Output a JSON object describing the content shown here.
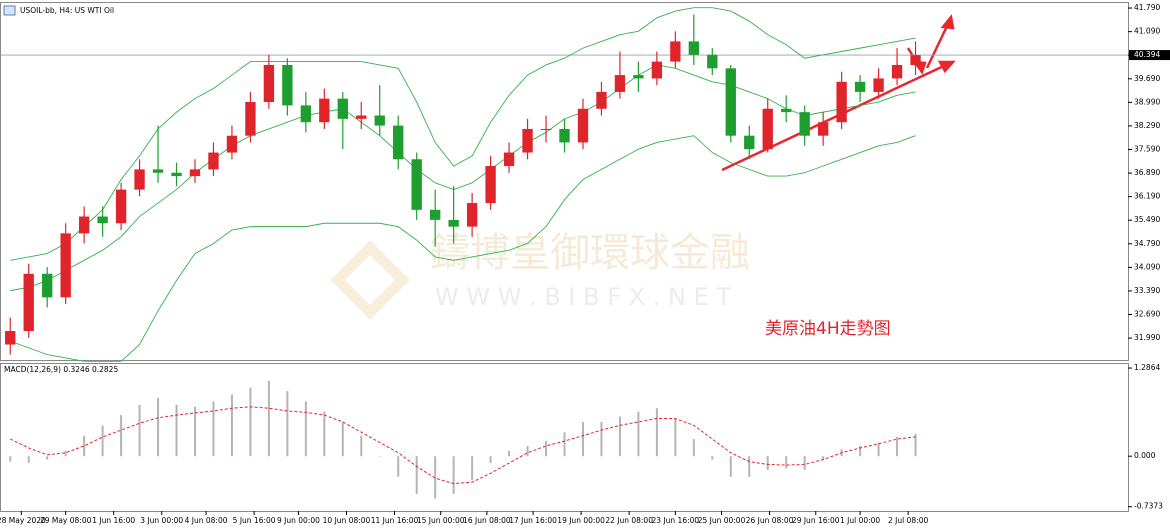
{
  "chart_data": [
    {
      "type": "candlestick",
      "title": "USOIL-bb, H4:  US WTI Oil",
      "annotation": "美原油4H走勢图",
      "watermark": [
        "鑄博皇御環球金融",
        "W W W . B I B F X . N E T"
      ],
      "up_color": "#e0242c",
      "down_color": "#1e9e2e",
      "band_color": "#33b24a",
      "xlim": [
        0,
        61
      ],
      "ylim": [
        31.34,
        41.94
      ],
      "xticks": [
        {
          "value": 1.1,
          "label": "28 May 2020"
        },
        {
          "value": 3.5,
          "label": "29 May 08:00"
        },
        {
          "value": 6.1,
          "label": "1 Jun 16:00"
        },
        {
          "value": 8.7,
          "label": "3 Jun 00:00"
        },
        {
          "value": 11.1,
          "label": "4 Jun 08:00"
        },
        {
          "value": 13.7,
          "label": "5 Jun 16:00"
        },
        {
          "value": 16.1,
          "label": "9 Jun 00:00"
        },
        {
          "value": 18.7,
          "label": "10 Jun 08:00"
        },
        {
          "value": 21.3,
          "label": "11 Jun 16:00"
        },
        {
          "value": 23.8,
          "label": "15 Jun 00:00"
        },
        {
          "value": 26.3,
          "label": "16 Jun 08:00"
        },
        {
          "value": 28.8,
          "label": "17 Jun 16:00"
        },
        {
          "value": 31.4,
          "label": "19 Jun 00:00"
        },
        {
          "value": 34,
          "label": "22 Jun 08:00"
        },
        {
          "value": 36.5,
          "label": "23 Jun 16:00"
        },
        {
          "value": 39,
          "label": "25 Jun 00:00"
        },
        {
          "value": 41.6,
          "label": "26 Jun 08:00"
        },
        {
          "value": 44.1,
          "label": "29 Jun 16:00"
        },
        {
          "value": 46.5,
          "label": "1 Jul 00:00"
        },
        {
          "value": 49.1,
          "label": "2 Jul 08:00"
        }
      ],
      "yticks": [
        {
          "value": 41.79,
          "label": "41.790"
        },
        {
          "value": 41.09,
          "label": "41.090"
        },
        {
          "value": 40.39,
          "label": "40.390"
        },
        {
          "value": 39.69,
          "label": "39.690"
        },
        {
          "value": 38.99,
          "label": "38.990"
        },
        {
          "value": 38.29,
          "label": "38.290"
        },
        {
          "value": 37.59,
          "label": "37.590"
        },
        {
          "value": 36.89,
          "label": "36.890"
        },
        {
          "value": 36.19,
          "label": "36.190"
        },
        {
          "value": 35.49,
          "label": "35.490"
        },
        {
          "value": 34.79,
          "label": "34.790"
        },
        {
          "value": 34.09,
          "label": "34.090"
        },
        {
          "value": 33.39,
          "label": "33.390"
        },
        {
          "value": 32.69,
          "label": "32.690"
        },
        {
          "value": 31.99,
          "label": "31.990"
        }
      ],
      "price_line": 40.394,
      "open": [
        31.8,
        32.2,
        33.9,
        33.2,
        35.1,
        35.6,
        35.4,
        36.4,
        37.0,
        36.9,
        36.8,
        37.0,
        37.5,
        38.0,
        39.0,
        40.1,
        38.9,
        38.4,
        39.1,
        38.5,
        38.6,
        38.3,
        37.3,
        35.8,
        35.5,
        35.3,
        36.0,
        37.1,
        37.5,
        38.2,
        38.2,
        37.8,
        38.8,
        39.3,
        39.8,
        39.7,
        40.2,
        40.8,
        40.4,
        40.0,
        38.0,
        37.6,
        38.8,
        38.7,
        38.0,
        38.4,
        39.6,
        39.3,
        39.7,
        40.1
      ],
      "high": [
        32.6,
        34.2,
        34.1,
        35.4,
        35.9,
        35.9,
        36.6,
        37.3,
        38.3,
        37.2,
        37.3,
        37.8,
        38.3,
        39.3,
        40.4,
        40.3,
        39.3,
        39.4,
        39.3,
        39.0,
        39.5,
        38.6,
        37.5,
        36.4,
        36.5,
        36.3,
        37.4,
        37.8,
        38.5,
        38.6,
        38.5,
        39.1,
        39.6,
        40.5,
        40.2,
        40.5,
        41.1,
        41.6,
        40.6,
        40.1,
        38.3,
        39.1,
        39.2,
        38.9,
        38.7,
        39.9,
        39.8,
        40.0,
        40.6,
        40.8
      ],
      "low": [
        31.5,
        32.0,
        32.9,
        33.0,
        34.8,
        35.0,
        35.2,
        36.2,
        36.6,
        36.5,
        36.6,
        36.8,
        37.3,
        37.8,
        38.8,
        38.6,
        38.1,
        38.2,
        37.6,
        38.2,
        38.0,
        37.0,
        35.5,
        34.7,
        34.8,
        35.0,
        35.8,
        36.9,
        37.3,
        37.8,
        37.5,
        37.6,
        38.6,
        39.1,
        39.3,
        39.5,
        40.0,
        40.1,
        39.8,
        37.8,
        37.3,
        37.5,
        38.4,
        37.7,
        37.7,
        38.2,
        39.0,
        39.1,
        39.5,
        39.8
      ],
      "close": [
        32.2,
        33.9,
        33.2,
        35.1,
        35.6,
        35.4,
        36.4,
        37.0,
        36.9,
        36.8,
        37.0,
        37.5,
        38.0,
        39.0,
        40.1,
        38.9,
        38.4,
        39.1,
        38.5,
        38.6,
        38.3,
        37.3,
        35.8,
        35.5,
        35.3,
        36.0,
        37.1,
        37.5,
        38.2,
        38.2,
        37.8,
        38.8,
        39.3,
        39.8,
        39.7,
        40.2,
        40.8,
        40.4,
        40.0,
        38.0,
        37.6,
        38.8,
        38.7,
        38.0,
        38.4,
        39.6,
        39.3,
        39.7,
        40.1,
        40.39
      ],
      "upper": [
        34.3,
        34.4,
        34.5,
        34.8,
        35.3,
        35.8,
        36.7,
        37.4,
        38.2,
        38.7,
        39.1,
        39.4,
        39.8,
        40.2,
        40.2,
        40.2,
        40.2,
        40.2,
        40.2,
        40.2,
        40.1,
        40.0,
        39.0,
        37.8,
        37.1,
        37.4,
        38.4,
        39.2,
        39.8,
        40.1,
        40.3,
        40.6,
        40.8,
        41.0,
        41.1,
        41.5,
        41.7,
        41.8,
        41.8,
        41.7,
        41.4,
        41.0,
        40.7,
        40.3,
        40.4,
        40.5,
        40.6,
        40.7,
        40.8,
        40.9
      ],
      "middle": [
        33.4,
        33.5,
        33.7,
        34.0,
        34.3,
        34.6,
        35.0,
        35.6,
        36.0,
        36.4,
        36.9,
        37.3,
        37.7,
        38.0,
        38.2,
        38.4,
        38.6,
        38.7,
        38.8,
        38.4,
        38.0,
        37.5,
        37.0,
        36.6,
        36.4,
        36.6,
        37.0,
        37.4,
        37.8,
        38.1,
        38.5,
        38.7,
        39.0,
        39.4,
        39.8,
        40.1,
        40.0,
        39.8,
        39.6,
        39.5,
        39.3,
        39.1,
        38.8,
        38.6,
        38.7,
        38.8,
        38.9,
        39.0,
        39.2,
        39.3
      ],
      "lower": [
        31.9,
        31.7,
        31.5,
        31.4,
        31.3,
        31.3,
        31.3,
        31.8,
        32.8,
        33.7,
        34.5,
        34.8,
        35.2,
        35.3,
        35.3,
        35.3,
        35.3,
        35.4,
        35.4,
        35.4,
        35.4,
        35.3,
        34.9,
        34.4,
        34.3,
        34.4,
        34.5,
        34.6,
        34.8,
        35.3,
        36.1,
        36.7,
        37.0,
        37.3,
        37.6,
        37.8,
        37.9,
        38.0,
        37.5,
        37.2,
        37.0,
        36.8,
        36.8,
        36.9,
        37.1,
        37.3,
        37.5,
        37.7,
        37.8,
        38.0
      ]
    },
    {
      "type": "macd",
      "title": "MACD(12,26,9) 0.3246 0.2825",
      "hist_color": "#b4b4b4",
      "signal_color": "#e0242c",
      "ylim": [
        -0.8,
        1.36
      ],
      "yticks": [
        1.2864,
        {
          "value": 0,
          "label": "0.000"
        },
        -0.7373
      ],
      "histogram": [
        -0.08,
        -0.1,
        -0.05,
        0.08,
        0.3,
        0.45,
        0.6,
        0.75,
        0.85,
        0.75,
        0.72,
        0.8,
        0.9,
        1.0,
        1.1,
        0.95,
        0.8,
        0.65,
        0.5,
        0.3,
        0.0,
        -0.3,
        -0.55,
        -0.62,
        -0.55,
        -0.35,
        -0.1,
        0.08,
        0.15,
        0.22,
        0.35,
        0.5,
        0.5,
        0.58,
        0.65,
        0.7,
        0.55,
        0.25,
        -0.05,
        -0.3,
        -0.3,
        -0.2,
        -0.18,
        -0.2,
        -0.05,
        0.1,
        0.15,
        0.2,
        0.28,
        0.3246
      ],
      "signal": [
        0.25,
        0.12,
        0.02,
        0.05,
        0.15,
        0.28,
        0.38,
        0.48,
        0.56,
        0.6,
        0.63,
        0.66,
        0.7,
        0.72,
        0.7,
        0.66,
        0.64,
        0.6,
        0.5,
        0.35,
        0.2,
        0.05,
        -0.15,
        -0.32,
        -0.4,
        -0.38,
        -0.25,
        -0.1,
        0.05,
        0.15,
        0.22,
        0.3,
        0.38,
        0.45,
        0.5,
        0.55,
        0.55,
        0.45,
        0.25,
        0.05,
        -0.08,
        -0.12,
        -0.13,
        -0.12,
        -0.05,
        0.05,
        0.12,
        0.18,
        0.25,
        0.2825
      ]
    }
  ]
}
